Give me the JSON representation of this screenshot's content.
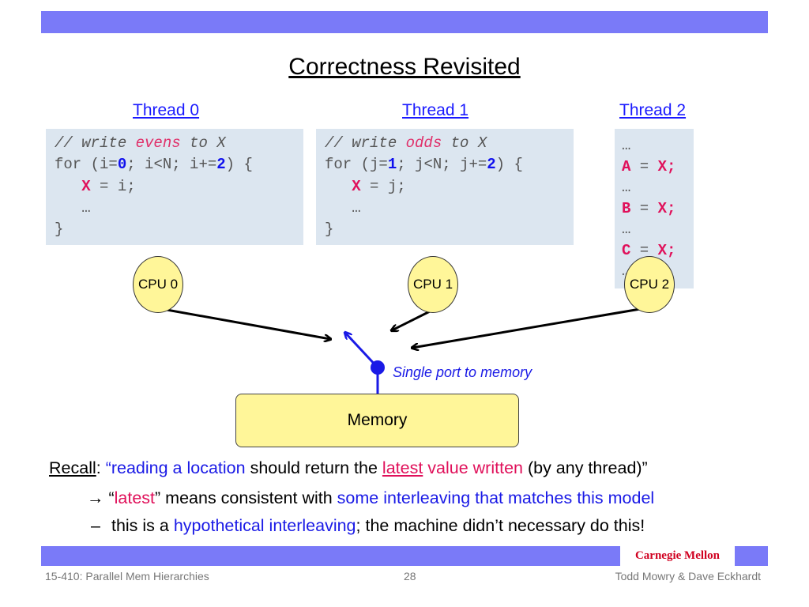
{
  "title": "Correctness Revisited",
  "threads": [
    {
      "label": "Thread 0",
      "code": {
        "comment_pre": "// write ",
        "comment_word": "evens",
        "comment_post": " to X",
        "for_pre": "for (i=",
        "init": "0",
        "for_mid": "; i<N; i+=",
        "step": "2",
        "for_post": ") {",
        "indent": "   ",
        "var": "X",
        "assign": " = i;",
        "ellipsis": "   …",
        "close": "}"
      }
    },
    {
      "label": "Thread 1",
      "code": {
        "comment_pre": "// write ",
        "comment_word": "odds",
        "comment_post": " to X",
        "for_pre": "for (j=",
        "init": "1",
        "for_mid": "; j<N; j+=",
        "step": "2",
        "for_post": ") {",
        "indent": "   ",
        "var": "X",
        "assign": " = j;",
        "ellipsis": "   …",
        "close": "}"
      }
    },
    {
      "label": "Thread 2",
      "code": {
        "ellipsis": "…",
        "lines": [
          {
            "lhs": "A",
            "eq": " = ",
            "rhs": "X;"
          },
          {
            "lhs": "B",
            "eq": " = ",
            "rhs": "X;"
          },
          {
            "lhs": "C",
            "eq": " = ",
            "rhs": "X;"
          }
        ]
      }
    }
  ],
  "cpus": [
    "CPU 0",
    "CPU 1",
    "CPU 2"
  ],
  "port_label": "Single port to memory",
  "memory_label": "Memory",
  "recall": {
    "lead": "Recall",
    "colon": ": ",
    "q1": "“reading a location",
    "t1": " should return the ",
    "latest": "latest",
    "vw": " value written",
    "t2": " (by any thread)”",
    "arrow": "→",
    "l2_open": " “",
    "l2_latest": "latest",
    "l2_mid": "” means consistent with ",
    "l2_blue": "some interleaving that matches this model",
    "dash": "–",
    "l3_pre": "this is a ",
    "l3_blue": "hypothetical interleaving",
    "l3_post": "; the machine didn’t necessary do this!"
  },
  "logo": "Carnegie Mellon",
  "footer": {
    "course": "15-410: Parallel Mem Hierarchies",
    "page": "28",
    "authors": "Todd Mowry & Dave Eckhardt"
  },
  "colors": {
    "bar": "#7a7af8",
    "code_bg": "#dce6f0",
    "highlight_pink": "#e0105a",
    "highlight_blue": "#1a1ae6",
    "cpu_fill": "#fff699"
  }
}
